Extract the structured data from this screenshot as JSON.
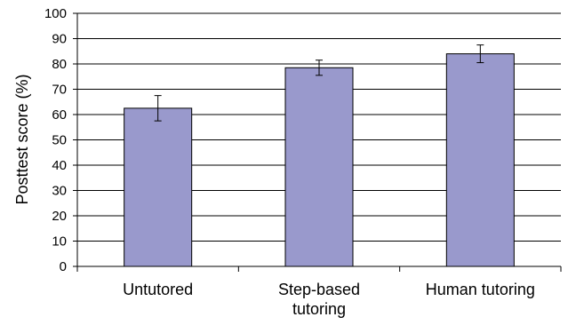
{
  "chart_data": {
    "type": "bar",
    "title": "",
    "xlabel": "",
    "ylabel": "Posttest score (%)",
    "ylim": [
      0,
      100
    ],
    "ytick_step": 10,
    "categories": [
      [
        "Untutored"
      ],
      [
        "Step-based",
        "tutoring"
      ],
      [
        "Human tutoring"
      ]
    ],
    "values": [
      62.5,
      78.5,
      84
    ],
    "error": [
      [
        57.5,
        67.5
      ],
      [
        75.5,
        81.5
      ],
      [
        80.5,
        87.5
      ]
    ],
    "grid": true,
    "legend": "none",
    "colors": {
      "bar_fill": "#9999cc",
      "bar_stroke": "#000000",
      "gridline": "#000000",
      "axis": "#000000"
    }
  }
}
